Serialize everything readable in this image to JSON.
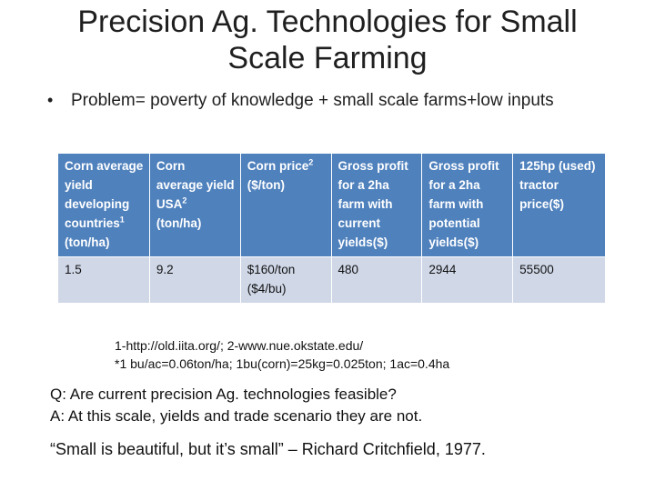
{
  "title_line1": "Precision Ag. Technologies for Small",
  "title_line2": "Scale Farming",
  "bullet": {
    "symbol": "•",
    "text": "Problem= poverty of knowledge + small scale farms+low inputs"
  },
  "table": {
    "header_bg": "#4f81bd",
    "row_bg": "#d0d8e8",
    "headers": [
      {
        "text": "Corn average yield developing countries",
        "sup": "1",
        "suffix": " (ton/ha)"
      },
      {
        "text": "Corn average yield USA",
        "sup": "2",
        "suffix": " (ton/ha)"
      },
      {
        "text": "Corn price",
        "sup": "2",
        "suffix": " ($/ton)"
      },
      {
        "text": "Gross profit for a 2ha farm with current yields($)",
        "sup": "",
        "suffix": ""
      },
      {
        "text": "Gross profit for a 2ha farm with potential yields($)",
        "sup": "",
        "suffix": ""
      },
      {
        "text": "125hp (used) tractor price($)",
        "sup": "",
        "suffix": ""
      }
    ],
    "rows": [
      [
        "1.5",
        "9.2",
        "$160/ton ($4/bu)",
        "480",
        "2944",
        "55500"
      ]
    ]
  },
  "footnotes": [
    "1-http://old.iita.org/; 2-www.nue.okstate.edu/",
    "*1 bu/ac=0.06ton/ha; 1bu(corn)=25kg=0.025ton; 1ac=0.4ha"
  ],
  "qa": {
    "question": "Q:  Are current precision Ag. technologies feasible?",
    "answer": "A:  At this scale, yields and trade scenario they are not."
  },
  "quote": "“Small is beautiful, but it’s small” – Richard Critchfield, 1977."
}
